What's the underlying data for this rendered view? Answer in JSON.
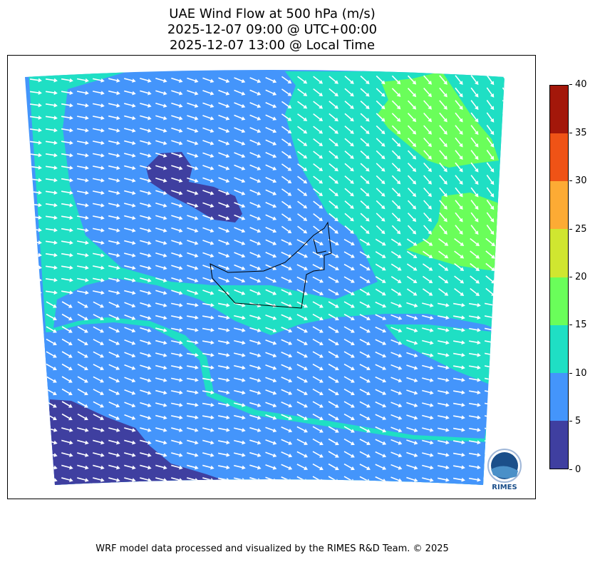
{
  "title": {
    "line1": "UAE Wind Flow at 500 hPa (m/s)",
    "line2": "2025-12-07 09:00 @ UTC+00:00",
    "line3": "2025-12-07 13:00 @ Local Time"
  },
  "colorbar": {
    "levels": [
      "0",
      "5",
      "10",
      "15",
      "20",
      "25",
      "30",
      "35",
      "40"
    ],
    "colors": [
      "#3f3fa0",
      "#4495fb",
      "#1fdfc4",
      "#6afe5a",
      "#d0e630",
      "#fdab34",
      "#ef5316",
      "#a3170a"
    ]
  },
  "logo": {
    "text": "RIMES",
    "ring_text": "Regional Integrated Multi-Hazard Early Warning System"
  },
  "footer": "WRF model data processed and visualized by the RIMES R&D Team. © 2025"
}
